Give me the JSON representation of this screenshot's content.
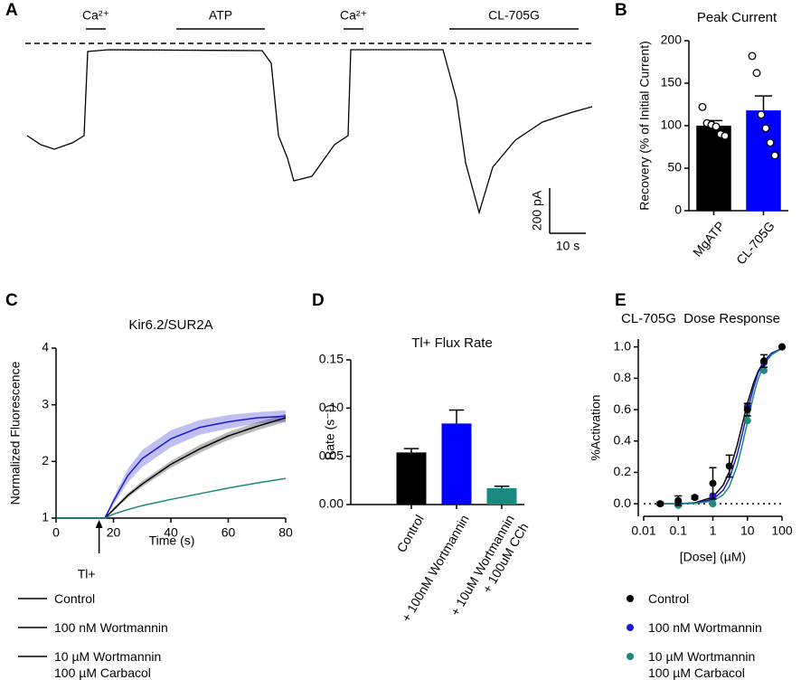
{
  "chart_data": [
    {
      "type": "trace",
      "panel": "A",
      "color": "#000000",
      "x": [
        0,
        3.75,
        7.5,
        12.5,
        15.75,
        16.75,
        22.5,
        65,
        67.5,
        69.5,
        72,
        73.75,
        78.75,
        85,
        88.75,
        89.5,
        115,
        118.75,
        121.25,
        125,
        128.75,
        135,
        142.5,
        150,
        156.25
      ],
      "values": [
        -408,
        -448,
        -468,
        -440,
        -408,
        -36,
        -28,
        -32,
        -88,
        -408,
        -508,
        -608,
        -588,
        -448,
        -408,
        -28,
        -28,
        -248,
        -528,
        -748,
        -548,
        -428,
        -348,
        -308,
        -280
      ],
      "applications": [
        {
          "label": "Ca²⁺",
          "start": 16.25,
          "end": 21.75
        },
        {
          "label": "ATP",
          "start": 41.25,
          "end": 65.75
        },
        {
          "label": "Ca²⁺",
          "start": 87.5,
          "end": 93
        },
        {
          "label": "CL-705G",
          "start": 116.75,
          "end": 152.5
        }
      ],
      "scale_bar": {
        "y": {
          "value": 200,
          "label": "200 pA"
        },
        "x": {
          "value": 10,
          "label": "10 s"
        }
      }
    },
    {
      "type": "bar",
      "panel": "B",
      "title": "Peak Current",
      "ylabel": "Recovery (% of Initial Current)",
      "categories": [
        "MgATP",
        "CL-705G"
      ],
      "values": [
        100,
        118
      ],
      "errors": [
        6,
        17
      ],
      "colors": [
        "#000000",
        "#0000ff"
      ],
      "points": [
        [
          122,
          103,
          101,
          99,
          90,
          88
        ],
        [
          182,
          162,
          113,
          97,
          80,
          65
        ]
      ],
      "ylim": [
        0,
        200
      ],
      "yticks": [
        0,
        50,
        100,
        150,
        200
      ]
    },
    {
      "type": "line",
      "panel": "C",
      "title": "Kir6.2/SUR2A",
      "xlabel": "Time (s)",
      "ylabel": "Normalized Fluorescence",
      "x": [
        0,
        10,
        17,
        20,
        25,
        30,
        40,
        50,
        60,
        70,
        80
      ],
      "series": [
        {
          "name": "Control",
          "color": "#000000",
          "values": [
            1,
            1,
            1,
            1.15,
            1.4,
            1.6,
            1.95,
            2.22,
            2.45,
            2.62,
            2.77
          ],
          "errors": [
            0.01,
            0.01,
            0.01,
            0.03,
            0.04,
            0.05,
            0.06,
            0.07,
            0.07,
            0.07,
            0.07
          ]
        },
        {
          "name": "100 nM Wortmannin",
          "color": "#1a1ad0",
          "values": [
            1,
            1,
            1,
            1.3,
            1.75,
            2.05,
            2.4,
            2.6,
            2.7,
            2.77,
            2.8
          ],
          "errors": [
            0.01,
            0.01,
            0.01,
            0.06,
            0.12,
            0.15,
            0.15,
            0.13,
            0.12,
            0.1,
            0.1
          ]
        },
        {
          "name": "10 µM Wortmannin\n100 µM Carbacol",
          "color": "#1a8a80",
          "values": [
            1,
            1,
            1,
            1.07,
            1.15,
            1.22,
            1.33,
            1.43,
            1.53,
            1.62,
            1.7
          ],
          "errors": [
            0.01,
            0.01,
            0.01,
            0.01,
            0.01,
            0.01,
            0.01,
            0.01,
            0.01,
            0.01,
            0.01
          ]
        }
      ],
      "xlim": [
        0,
        80
      ],
      "xticks": [
        0,
        20,
        40,
        60,
        80
      ],
      "ylim": [
        1,
        4
      ],
      "yticks": [
        1,
        2,
        3,
        4
      ],
      "annotation": {
        "text": "Tl+",
        "x": 15
      }
    },
    {
      "type": "bar",
      "panel": "D",
      "title": "Tl+ Flux Rate",
      "ylabel": "Rate (s⁻¹)",
      "categories": [
        "Control",
        "+ 100nM Wortmannin",
        "+ 10uM Wortmannin\n+ 100uM CCh"
      ],
      "values": [
        0.054,
        0.084,
        0.017
      ],
      "errors": [
        0.004,
        0.014,
        0.002
      ],
      "colors": [
        "#000000",
        "#0000ff",
        "#1a8a80"
      ],
      "ylim": [
        0,
        0.15
      ],
      "yticks": [
        {
          "value": 0,
          "label": "0.00"
        },
        {
          "value": 0.05,
          "label": "0.05"
        },
        {
          "value": 0.1,
          "label": "0.10"
        },
        {
          "value": 0.15,
          "label": "0.15"
        }
      ]
    },
    {
      "type": "scatter",
      "panel": "E",
      "title": "CL-705G  Dose Response",
      "xlabel": "[Dose] (µM)",
      "ylabel": "%Activation",
      "x": [
        0.03,
        0.1,
        0.3,
        1,
        3,
        10,
        30,
        100
      ],
      "fit_x": [
        0.03,
        0.1,
        0.3,
        1,
        2,
        3,
        5,
        7,
        10,
        15,
        20,
        30,
        50,
        100
      ],
      "series": [
        {
          "name": "Control",
          "color": "#000000",
          "values": [
            0,
            0.02,
            0.04,
            0.13,
            0.24,
            0.6,
            0.91,
            1.0
          ],
          "errors": [
            0.01,
            0.03,
            0.01,
            0.1,
            0.07,
            0.04,
            0.04,
            0
          ],
          "fit": [
            0,
            0.001,
            0.006,
            0.042,
            0.12,
            0.205,
            0.37,
            0.5,
            0.64,
            0.77,
            0.84,
            0.91,
            0.96,
            0.99
          ]
        },
        {
          "name": "100 nM Wortmannin",
          "color": "#1a1ad0",
          "values": [
            null,
            0.01,
            null,
            0.05,
            null,
            0.62,
            0.9,
            1.0
          ],
          "fit": [
            0,
            0,
            0.004,
            0.028,
            0.086,
            0.16,
            0.31,
            0.44,
            0.59,
            0.74,
            0.83,
            0.9,
            0.96,
            0.99
          ]
        },
        {
          "name": "10 µM Wortmannin\n100 µM Carbacol",
          "color": "#1a8a80",
          "values": [
            null,
            -0.01,
            null,
            0.0,
            null,
            0.53,
            0.85,
            null
          ],
          "fit": [
            0,
            0,
            0.002,
            0.017,
            0.057,
            0.11,
            0.24,
            0.37,
            0.52,
            0.69,
            0.79,
            0.89,
            0.95,
            0.99
          ]
        }
      ],
      "xlim": [
        0.01,
        100
      ],
      "xticks": [
        0.01,
        0.1,
        1,
        10,
        100
      ],
      "log_x": true,
      "ylim": [
        -0.08,
        1.05
      ],
      "yticks": [
        {
          "value": 0,
          "label": "0.0"
        },
        {
          "value": 0.2,
          "label": "0.2"
        },
        {
          "value": 0.4,
          "label": "0.4"
        },
        {
          "value": 0.6,
          "label": "0.6"
        },
        {
          "value": 0.8,
          "label": "0.8"
        },
        {
          "value": 1,
          "label": "1.0"
        }
      ],
      "reference_line": 0
    }
  ]
}
